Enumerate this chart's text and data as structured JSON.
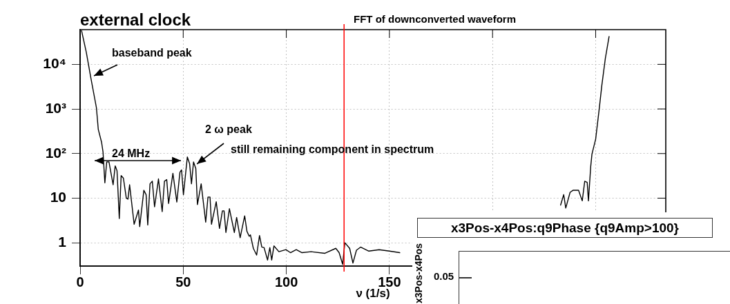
{
  "chart_data": [
    {
      "type": "line",
      "title": "external clock",
      "subtitle": "FFT of downconverted waveform",
      "xlabel": "ν (1/s)",
      "log": "y",
      "grid": true,
      "marker": "none",
      "line_style": "solid",
      "xlim": [
        0,
        284
      ],
      "ylim": [
        0.3,
        60000
      ],
      "xticks": [
        0,
        50,
        100,
        150,
        {
          "value": 200,
          "label": null
        },
        {
          "value": 250,
          "label": null
        }
      ],
      "yticks": [
        1,
        10,
        {
          "value": 100,
          "label": "10²"
        },
        {
          "value": 1000,
          "label": "10³"
        },
        {
          "value": 10000,
          "label": "10⁴"
        }
      ],
      "ref_lines": [
        {
          "axis": "x",
          "value": 128,
          "color": "#ff0000"
        }
      ],
      "annotations": [
        "baseband peak",
        "24 MHz",
        {
          "text": "2 ω peak",
          "x": 55,
          "y": 65
        },
        "still remaining component in spectrum"
      ],
      "series": [
        {
          "color": "#000000",
          "x": [
            0.7,
            3,
            5.2,
            7.9,
            8.8,
            10.4,
            11.1,
            12,
            12.9,
            14,
            16,
            17,
            17.9,
            19,
            19.9,
            21,
            22.4,
            23.2,
            24,
            26.2,
            28.3,
            28.9,
            30.9,
            32,
            32.8,
            33.9,
            35,
            36.1,
            38,
            39.8,
            40.9,
            42,
            42.9,
            45,
            46.9,
            48.4,
            49.2,
            50.1,
            52,
            53.1,
            54,
            55,
            56.1,
            56.9,
            58.7,
            60.9,
            62,
            63,
            63.7,
            66,
            67.6,
            69,
            69.8,
            70.7,
            72.4,
            74.8,
            75.9,
            77.6,
            79.8,
            80.9,
            82,
            82.6,
            84,
            85.6,
            87,
            88.1,
            89.2,
            90.9,
            92,
            92.9,
            94,
            96.4,
            99.8,
            102,
            104.8,
            107.6,
            112,
            118.7,
            124,
            125.6,
            127.3,
            128.4,
            130.7,
            132.3,
            134,
            136,
            140,
            145,
            150,
            155,
            190,
            233,
            234.5,
            235.5,
            237.6,
            239,
            240.5,
            241.7,
            243.5,
            244.7,
            245.9,
            246.5,
            247.6,
            248.2,
            250,
            251.8,
            253,
            254.7,
            256.5
          ],
          "values": [
            57000,
            18600,
            5000,
            1070,
            350,
            180,
            110,
            22,
            65,
            65,
            20,
            53,
            41,
            3.5,
            32,
            28,
            10,
            9.5,
            20,
            2.6,
            5.4,
            2.3,
            15,
            12,
            2.5,
            21,
            24,
            6.4,
            27,
            5,
            24,
            26,
            7.6,
            36,
            8.2,
            38,
            43,
            12,
            84,
            59,
            21,
            65,
            46,
            7.2,
            21,
            2.9,
            10.6,
            10.6,
            2.6,
            8.3,
            2.1,
            5.2,
            5.2,
            1.7,
            5.8,
            1.7,
            3.7,
            1.3,
            4,
            1.8,
            1.4,
            1.5,
            0.75,
            0.53,
            1.45,
            0.8,
            0.78,
            0.41,
            0.78,
            0.41,
            0.85,
            0.63,
            0.7,
            0.6,
            0.7,
            0.6,
            0.63,
            0.58,
            0.75,
            0.6,
            0.33,
            1,
            0.75,
            0.35,
            0.68,
            0.8,
            0.65,
            0.7,
            0.65,
            0.6,
            null,
            7,
            12,
            6,
            13.5,
            15,
            15,
            15,
            8.7,
            24,
            22.6,
            8.7,
            51,
            97,
            210,
            1070,
            3400,
            13600,
            42000
          ]
        }
      ]
    },
    {
      "type": "other",
      "title": "x3Pos-x4Pos:q9Phase {q9Amp>100}",
      "ylabel": "x3Pos-x4Pos",
      "annotations": [
        "0.05"
      ]
    }
  ]
}
